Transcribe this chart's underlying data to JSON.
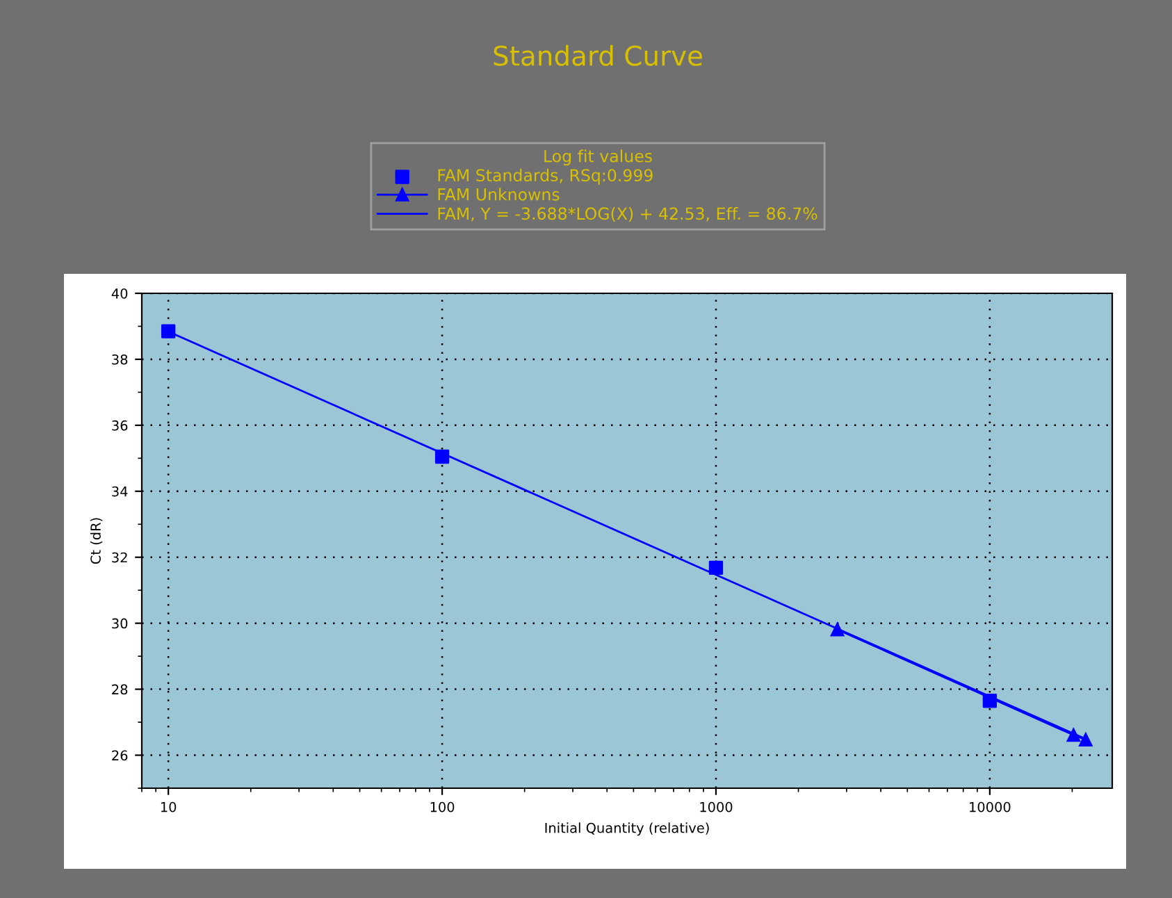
{
  "chart_data": {
    "type": "scatter",
    "title": "Standard Curve",
    "xlabel": "Initial Quantity (relative)",
    "ylabel": "Ct (dR)",
    "legend_title": "Log fit values",
    "log": "x",
    "xlim": [
      8,
      28000
    ],
    "xticks": [
      10,
      100,
      1000,
      10000
    ],
    "ylim": [
      25,
      40
    ],
    "yticks": [
      26,
      28,
      30,
      32,
      34,
      36,
      38,
      40
    ],
    "grid": true,
    "legend": "top",
    "series": [
      {
        "name": "FAM Standards, RSq:0.999",
        "marker": "square",
        "color": "#0000ff",
        "x": [
          10,
          100,
          1000,
          10000
        ],
        "values": [
          38.85,
          35.05,
          31.68,
          27.65
        ]
      },
      {
        "name": "FAM Unknowns",
        "type": "line",
        "marker": "triangle",
        "color": "#0000ff",
        "x": [
          2775,
          20230,
          22400
        ],
        "values": [
          29.81,
          26.61,
          26.47
        ]
      },
      {
        "name": "FAM, Y = -3.688*LOG(X) + 42.53, Eff. = 86.7%",
        "type": "line",
        "marker": "none",
        "color": "#0000ff",
        "x": [
          10,
          22400
        ],
        "values": [
          38.84,
          26.49
        ]
      }
    ]
  }
}
